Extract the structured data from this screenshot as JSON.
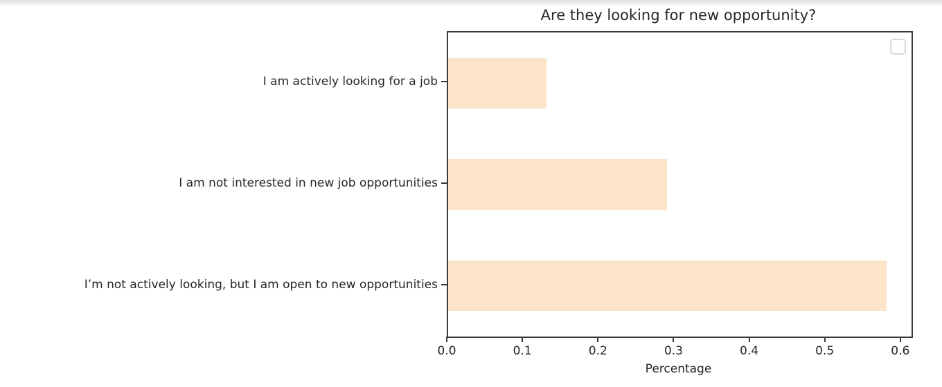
{
  "page": {
    "background_color": "#ffffff"
  },
  "chart_data": {
    "type": "bar",
    "orientation": "horizontal",
    "title": "Are they looking for new opportunity?",
    "xlabel": "Percentage",
    "ylabel": "",
    "categories": [
      "I am actively looking for a job",
      "I am not interested in new job opportunities",
      "I’m not actively looking, but I am open to new opportunities"
    ],
    "values": [
      0.13,
      0.29,
      0.58
    ],
    "xlim": [
      0,
      0.613
    ],
    "xticks": [
      "0.0",
      "0.1",
      "0.2",
      "0.3",
      "0.4",
      "0.5",
      "0.6"
    ],
    "bar_color": "#fbe4c8",
    "axis_color": "#3a3a3a",
    "text_color": "#262626",
    "legend_border_color": "#d9d9d9",
    "grid": false,
    "legend": {
      "visible": true,
      "position": "upper right",
      "entries": []
    }
  }
}
